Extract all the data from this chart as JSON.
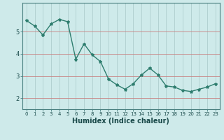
{
  "x": [
    0,
    1,
    2,
    3,
    4,
    5,
    6,
    7,
    8,
    9,
    10,
    11,
    12,
    13,
    14,
    15,
    16,
    17,
    18,
    19,
    20,
    21,
    22,
    23
  ],
  "y": [
    5.5,
    5.25,
    4.85,
    5.35,
    5.55,
    5.45,
    3.75,
    4.45,
    3.95,
    3.65,
    2.85,
    2.6,
    2.4,
    2.65,
    3.05,
    3.35,
    3.05,
    2.55,
    2.5,
    2.35,
    2.3,
    2.4,
    2.5,
    2.65
  ],
  "line_color": "#2e7d6e",
  "marker": "*",
  "marker_size": 3,
  "line_width": 1.0,
  "xlabel": "Humidex (Indice chaleur)",
  "xlabel_fontsize": 7,
  "bg_color": "#ceeaea",
  "grid_color_x": "#a8c8c8",
  "grid_color_y": "#c88080",
  "ylim": [
    1.5,
    6.3
  ],
  "xlim": [
    -0.5,
    23.5
  ],
  "yticks": [
    2,
    3,
    4,
    5
  ],
  "xticks": [
    0,
    1,
    2,
    3,
    4,
    5,
    6,
    7,
    8,
    9,
    10,
    11,
    12,
    13,
    14,
    15,
    16,
    17,
    18,
    19,
    20,
    21,
    22,
    23
  ],
  "tick_fontsize": 5,
  "spine_color": "#4a8080"
}
